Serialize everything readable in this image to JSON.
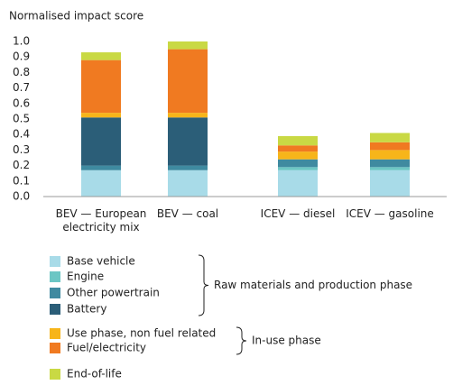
{
  "chart_data": {
    "type": "stacked_bar",
    "y_label": "Normalised impact score",
    "categories": [
      "BEV — European electricity mix",
      "BEV — coal",
      "ICEV — diesel",
      "ICEV — gasoline"
    ],
    "series": [
      {
        "name": "Base vehicle",
        "color": "#a8dbe8",
        "values": [
          0.17,
          0.17,
          0.17,
          0.17
        ]
      },
      {
        "name": "Engine",
        "color": "#6cc6c4",
        "values": [
          0,
          0,
          0.02,
          0.02
        ]
      },
      {
        "name": "Other powertrain",
        "color": "#3f8aa0",
        "values": [
          0.03,
          0.03,
          0.05,
          0.05
        ]
      },
      {
        "name": "Battery",
        "color": "#2b5e78",
        "values": [
          0.31,
          0.31,
          0,
          0
        ]
      },
      {
        "name": "Use phase, non fuel related",
        "color": "#f7b51a",
        "values": [
          0.03,
          0.03,
          0.05,
          0.06
        ]
      },
      {
        "name": "Fuel/electricity",
        "color": "#f07a21",
        "values": [
          0.34,
          0.41,
          0.04,
          0.05
        ]
      },
      {
        "name": "End-of-life",
        "color": "#c9d944",
        "values": [
          0.05,
          0.05,
          0.06,
          0.06
        ]
      }
    ],
    "legend_groups": [
      "Raw materials and production phase",
      "In-use phase"
    ],
    "ylim": [
      0,
      1
    ],
    "yticks": [
      {
        "value": 0,
        "label": "0.0"
      },
      0.1,
      0.2,
      0.3,
      0.4,
      0.5,
      0.6,
      0.7,
      0.8,
      0.9,
      {
        "value": 1,
        "label": "1.0"
      }
    ],
    "grid": false
  }
}
